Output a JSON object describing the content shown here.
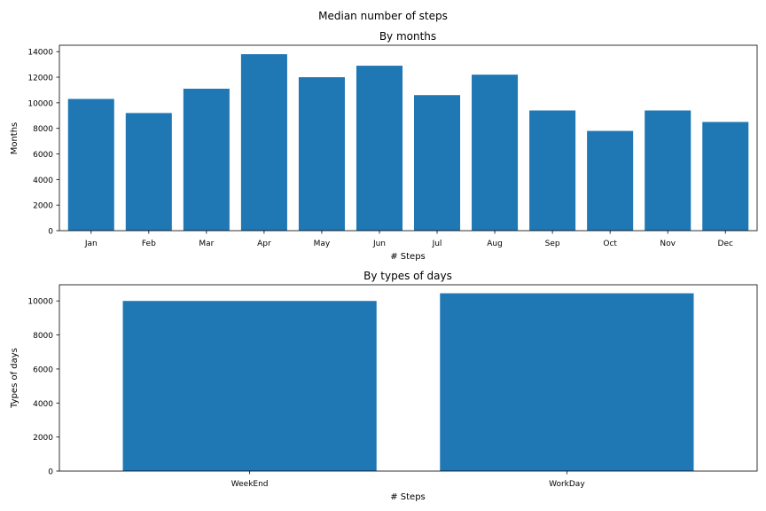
{
  "suptitle": "Median number of steps",
  "bar_color": "#1f77b4",
  "chart_data": [
    {
      "type": "bar",
      "title": "By months",
      "xlabel": "# Steps",
      "ylabel": "Months",
      "categories": [
        "Jan",
        "Feb",
        "Mar",
        "Apr",
        "May",
        "Jun",
        "Jul",
        "Aug",
        "Sep",
        "Oct",
        "Nov",
        "Dec"
      ],
      "values": [
        10300,
        9200,
        11100,
        13800,
        12000,
        12900,
        10600,
        12200,
        9400,
        7800,
        9400,
        8500
      ],
      "ylim": [
        0,
        14500
      ],
      "yticks": [
        0,
        2000,
        4000,
        6000,
        8000,
        10000,
        12000,
        14000
      ],
      "grid": false
    },
    {
      "type": "bar",
      "title": "By types of days",
      "xlabel": "# Steps",
      "ylabel": "Types of days",
      "categories": [
        "WeekEnd",
        "WorkDay"
      ],
      "values": [
        10000,
        10450
      ],
      "ylim": [
        0,
        10950
      ],
      "yticks": [
        0,
        2000,
        4000,
        6000,
        8000,
        10000
      ],
      "grid": false
    }
  ]
}
